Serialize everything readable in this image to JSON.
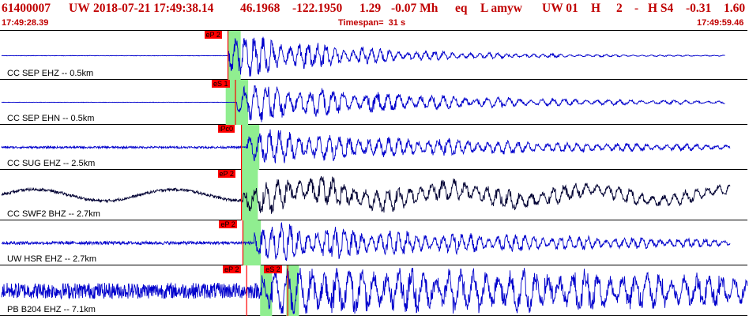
{
  "header": {
    "event_id": "61400007",
    "network": "UW",
    "datetime": "2018-07-21 17:49:38.14",
    "lat": "46.1968",
    "lon": "-122.1950",
    "depth": "1.29",
    "magnitude": "-0.07 Mh",
    "etype": "eq",
    "flags": "L amyw",
    "source": "UW 01",
    "quality": "H",
    "nphases": "2",
    "dash": "-",
    "hstation": "H S4",
    "residual": "-0.31",
    "last": "1.60"
  },
  "subheader": {
    "start_time": "17:49:28.39",
    "timespan": "Timespan=  31 s",
    "end_time": "17:49:59.46"
  },
  "colors": {
    "header_text": "#c00000",
    "trace_blue": "#0000cc",
    "trace_black": "#000033",
    "pick_red": "#ff0000",
    "window_green": "#90ee90"
  },
  "traces": [
    {
      "label": "CC SEP EHZ -- 0.5km",
      "color": "blue",
      "picks": [
        {
          "label": "eP 2",
          "t": 0.305
        }
      ],
      "windows": [
        {
          "t0": 0.305,
          "t1": 0.322
        }
      ],
      "onset": 0.305,
      "end": 0.97,
      "pre_noise": 0.01,
      "amp": 0.9,
      "decay": 6,
      "freq": 0.55
    },
    {
      "label": "CC SEP EHN -- 0.5km",
      "color": "blue",
      "picks": [
        {
          "label": "eS 1",
          "t": 0.315
        }
      ],
      "windows": [
        {
          "t0": 0.302,
          "t1": 0.332
        }
      ],
      "onset": 0.317,
      "end": 0.97,
      "pre_noise": 0.01,
      "amp": 0.85,
      "decay": 4,
      "freq": 0.45
    },
    {
      "label": "CC SUG EHZ -- 2.5km",
      "color": "blue",
      "picks": [
        {
          "label": "iPc0",
          "t": 0.323
        }
      ],
      "windows": [
        {
          "t0": 0.323,
          "t1": 0.347
        }
      ],
      "onset": 0.33,
      "end": 0.977,
      "pre_noise": 0.05,
      "amp": 0.75,
      "decay": 3,
      "freq": 0.5
    },
    {
      "label": "CC SWF2 BHZ -- 2.7km",
      "color": "black",
      "picks": [
        {
          "label": "eP 2",
          "t": 0.323
        }
      ],
      "windows": [
        {
          "t0": 0.323,
          "t1": 0.345
        }
      ],
      "onset": 0.325,
      "end": 0.977,
      "pre_noise": 0.06,
      "amp": 0.6,
      "decay": 1.5,
      "freq": 0.45,
      "long_period": true
    },
    {
      "label": "UW HSR EHZ -- 2.7km",
      "color": "blue",
      "picks": [
        {
          "label": "eP 2",
          "t": 0.325
        }
      ],
      "windows": [
        {
          "t0": 0.325,
          "t1": 0.349
        }
      ],
      "onset": 0.34,
      "end": 0.977,
      "pre_noise": 0.08,
      "amp": 0.8,
      "decay": 2.5,
      "freq": 0.55
    },
    {
      "label": "PB B204 EHZ -- 7.1km",
      "color": "blue",
      "picks": [
        {
          "label": "eP 2",
          "t": 0.33
        },
        {
          "label": "eS 2",
          "t": 0.385
        }
      ],
      "windows": [
        {
          "t0": 0.348,
          "t1": 0.364
        },
        {
          "t0": 0.383,
          "t1": 0.4
        }
      ],
      "onset": 0.35,
      "end": 1.0,
      "pre_noise": 0.35,
      "amp": 0.95,
      "decay": 0.8,
      "freq": 0.4,
      "s_onset": 0.405
    }
  ]
}
